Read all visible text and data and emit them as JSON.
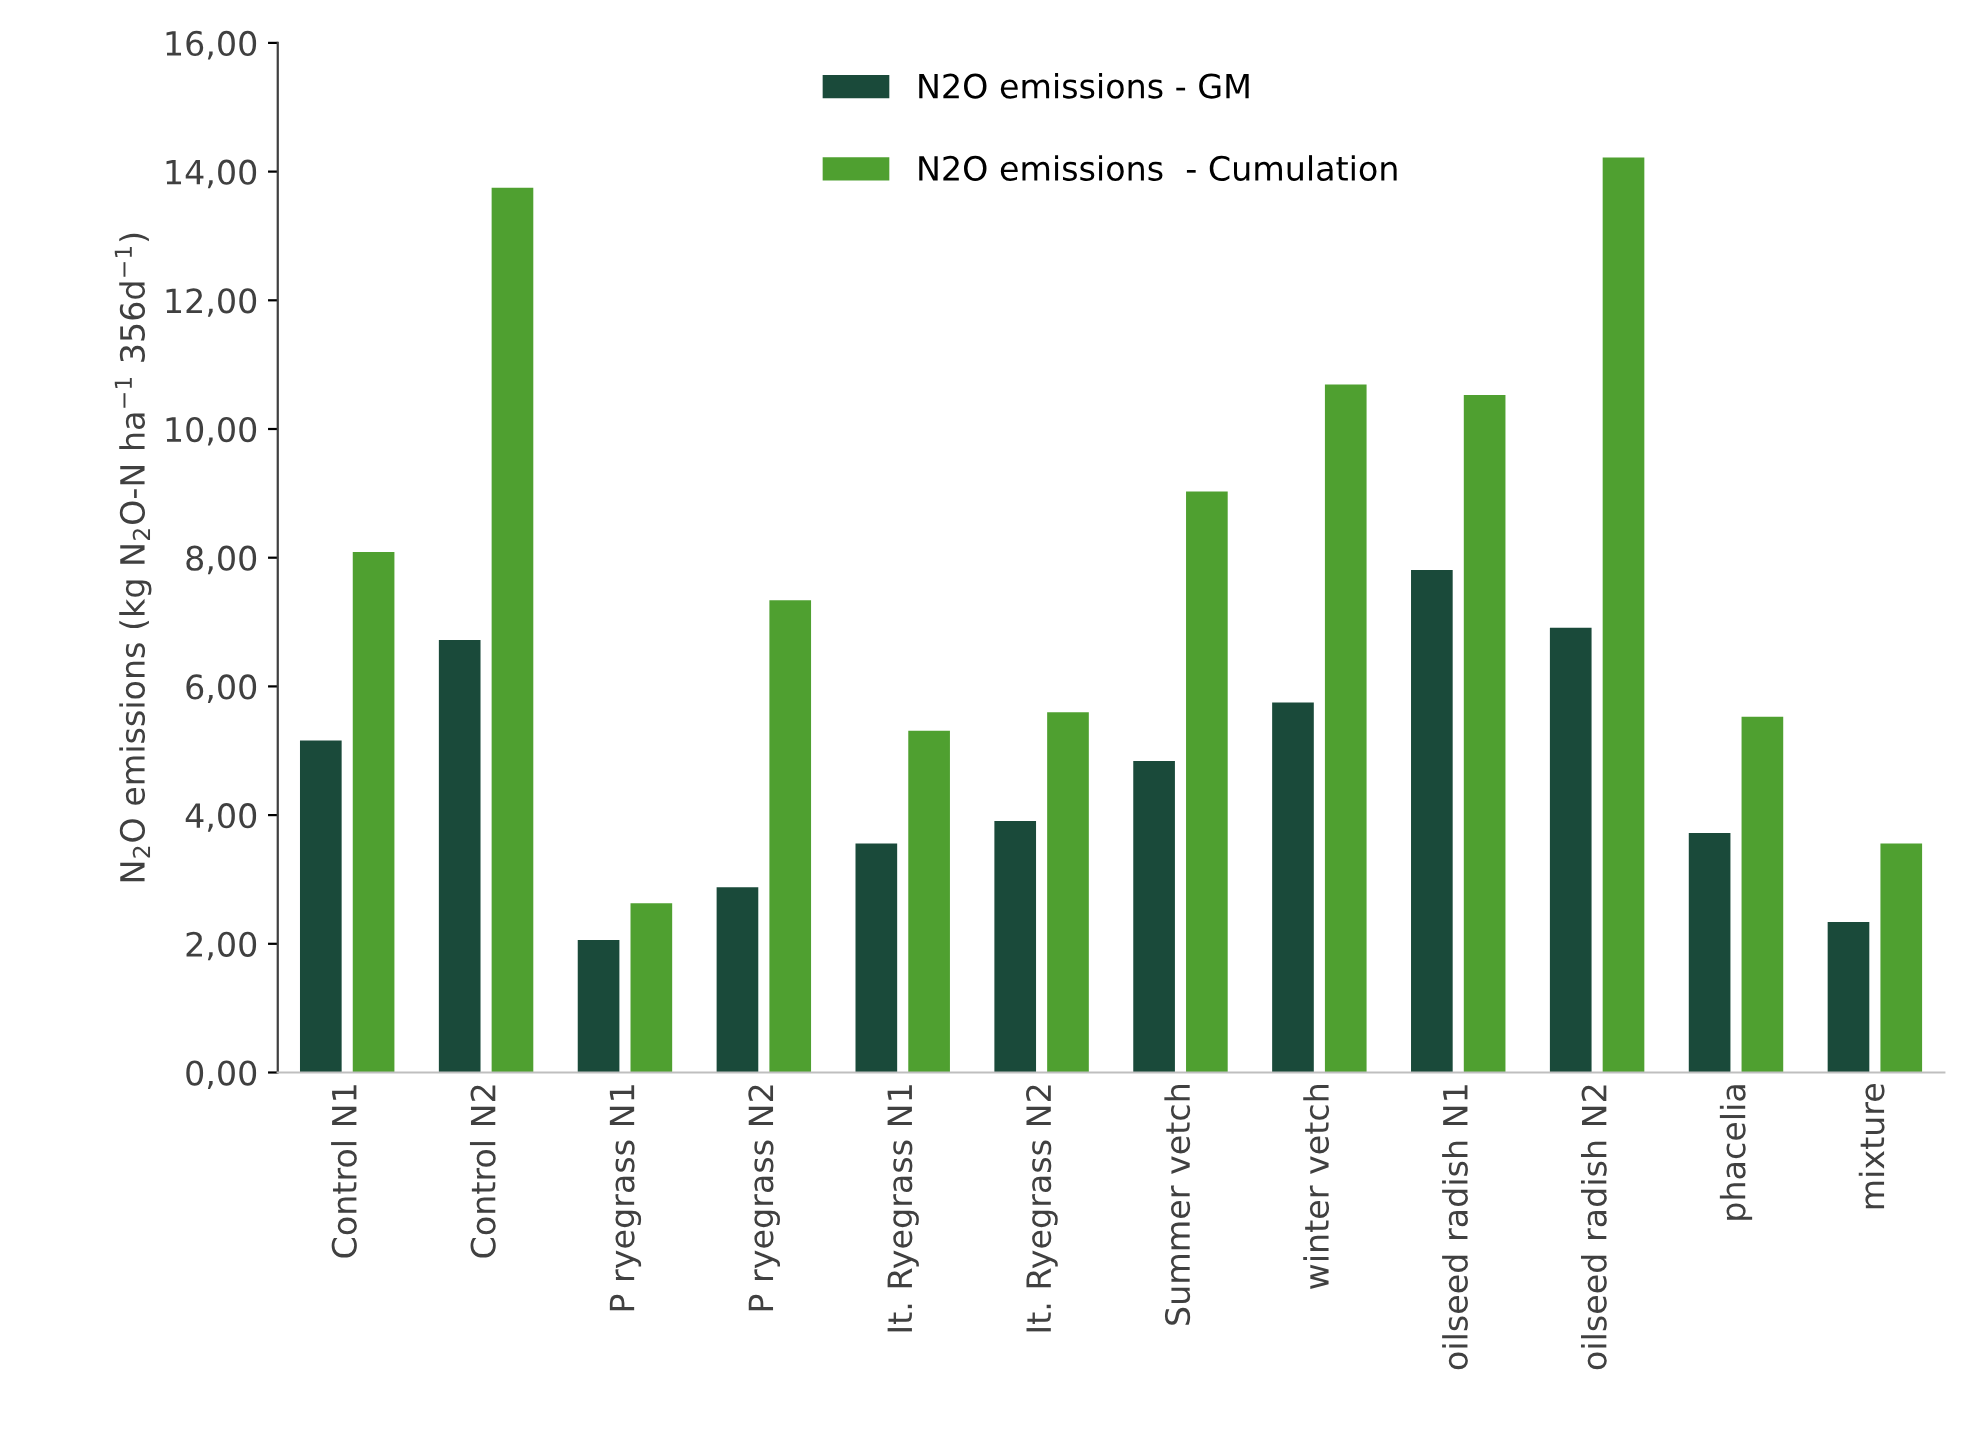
{
  "chart_data": {
    "type": "bar",
    "ylabel": "N$_{2}$O emissions (kg N$_{2}$O-N ha$^{−1}$ 356d$^{−1}$)",
    "categories": [
      "Control N1",
      "Control N2",
      "P ryegrass N1",
      "P ryegrass N2",
      "It. Ryegrass N1",
      "It. Ryegrass N2",
      "Summer vetch",
      "winter vetch",
      "oilseed radish N1",
      "oilseed radish N2",
      "phacelia",
      "mixture"
    ],
    "series": [
      {
        "name": "N2O emissions - GM",
        "color": "#1a4a3a",
        "values": [
          5.16,
          6.72,
          2.06,
          2.88,
          3.56,
          3.91,
          4.84,
          5.75,
          7.81,
          6.91,
          3.72,
          2.34
        ]
      },
      {
        "name": "N2O emissions  - Cumulation",
        "color": "#4fa030",
        "values": [
          8.09,
          13.75,
          2.63,
          7.34,
          5.31,
          5.6,
          9.03,
          10.69,
          10.53,
          14.22,
          5.53,
          3.56
        ]
      }
    ],
    "ylim": [
      0,
      16
    ],
    "yticks": [
      {
        "value": 0,
        "label": "0,00"
      },
      {
        "value": 2,
        "label": "2,00"
      },
      {
        "value": 4,
        "label": "4,00"
      },
      {
        "value": 6,
        "label": "6,00"
      },
      {
        "value": 8,
        "label": "8,00"
      },
      {
        "value": 10,
        "label": "10,00"
      },
      {
        "value": 12,
        "label": "12,00"
      },
      {
        "value": 14,
        "label": "14,00"
      },
      {
        "value": 16,
        "label": "16,00"
      }
    ],
    "grid": false,
    "legend": "top"
  }
}
